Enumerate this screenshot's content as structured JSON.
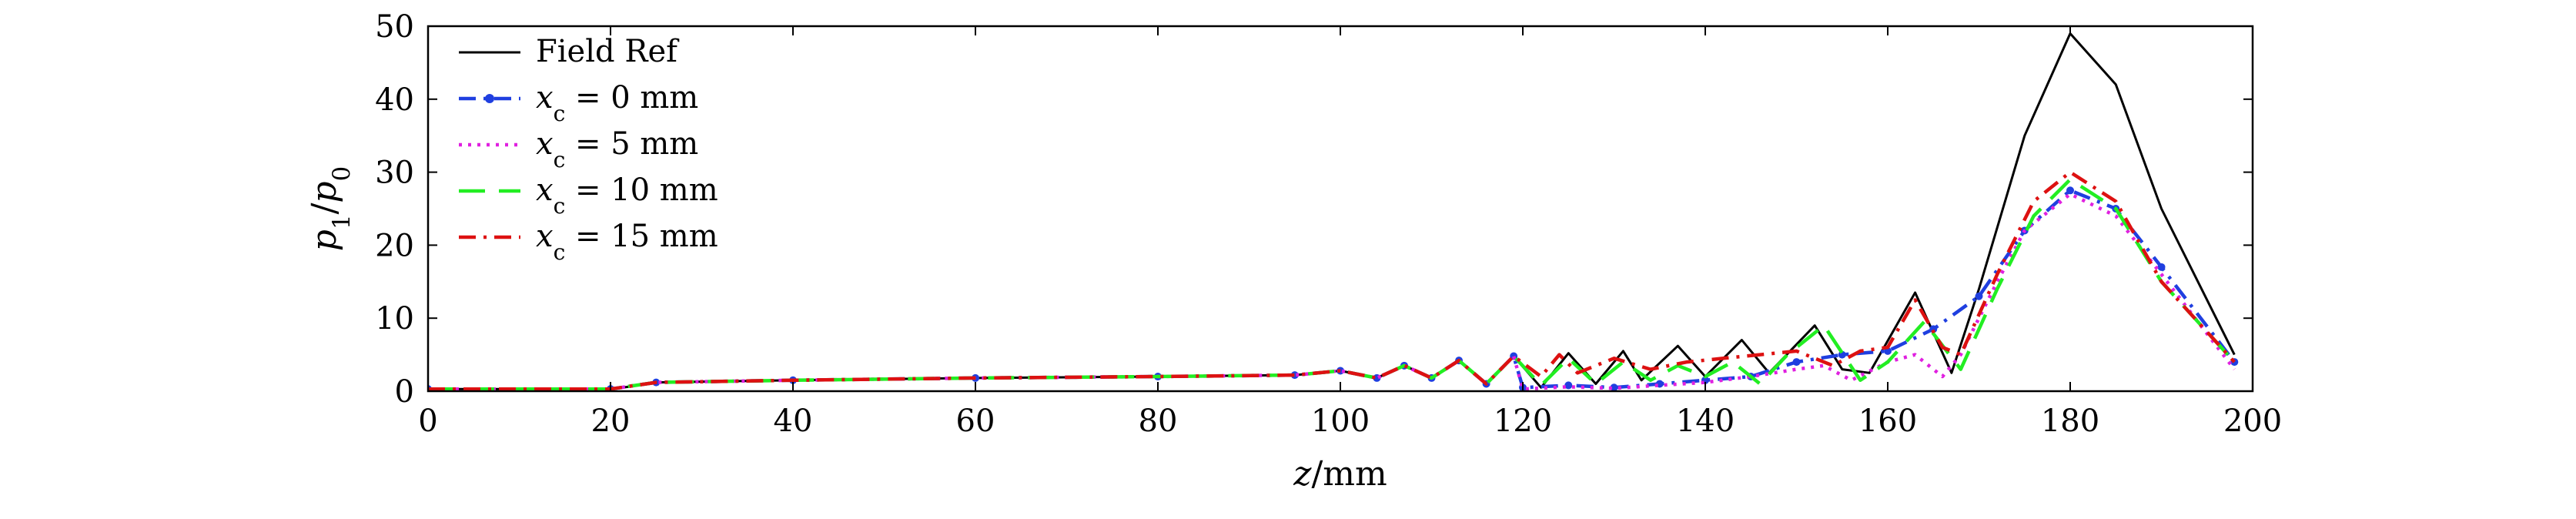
{
  "chart_data": {
    "type": "line",
    "xlabel": "z/mm",
    "ylabel": "p1/p0",
    "xlim": [
      0,
      200
    ],
    "ylim": [
      0,
      50
    ],
    "xticks": [
      0,
      20,
      40,
      60,
      80,
      100,
      120,
      140,
      160,
      180,
      200
    ],
    "yticks": [
      0,
      10,
      20,
      30,
      40,
      50
    ],
    "grid": false,
    "legend_position": "top-left",
    "series": [
      {
        "name": "Field Ref",
        "color": "#000000",
        "dash": "solid",
        "marker": "none",
        "x": [
          0,
          20,
          22,
          25,
          40,
          60,
          80,
          95,
          100,
          104,
          107,
          110,
          113,
          116,
          119,
          122,
          125,
          128,
          131,
          133,
          137,
          140,
          144,
          147,
          152,
          155,
          158,
          163,
          167,
          170,
          175,
          180,
          185,
          190,
          198
        ],
        "y": [
          0.3,
          0.3,
          0.6,
          1.2,
          1.5,
          1.8,
          2.0,
          2.2,
          2.8,
          1.8,
          3.5,
          1.8,
          4.2,
          1.0,
          4.8,
          0.5,
          5.2,
          1.0,
          5.5,
          1.5,
          6.2,
          2.0,
          7.0,
          2.5,
          9.0,
          3.0,
          2.5,
          13.5,
          2.5,
          14.0,
          35.0,
          49.0,
          42.0,
          25.0,
          5.0
        ]
      },
      {
        "name": "x_c = 0 mm",
        "color": "#1f3fe0",
        "dash": "dashdot",
        "marker": "dot",
        "x": [
          0,
          20,
          25,
          40,
          60,
          80,
          95,
          100,
          104,
          107,
          110,
          113,
          116,
          119,
          120,
          125,
          130,
          135,
          140,
          145,
          150,
          155,
          160,
          165,
          170,
          175,
          180,
          185,
          190,
          198
        ],
        "y": [
          0.3,
          0.3,
          1.2,
          1.5,
          1.8,
          2.0,
          2.2,
          2.8,
          1.8,
          3.5,
          1.8,
          4.2,
          1.0,
          4.8,
          0.5,
          0.8,
          0.5,
          1.0,
          1.5,
          2.0,
          4.0,
          5.0,
          5.5,
          8.5,
          13.0,
          22.0,
          27.5,
          25.0,
          17.0,
          4.0
        ]
      },
      {
        "name": "x_c = 5 mm",
        "color": "#e020e0",
        "dash": "dotted",
        "marker": "none",
        "x": [
          0,
          20,
          25,
          40,
          60,
          80,
          95,
          100,
          104,
          107,
          110,
          113,
          116,
          119,
          120,
          125,
          130,
          135,
          140,
          145,
          150,
          153,
          156,
          160,
          163,
          166,
          168,
          172,
          175,
          180,
          185,
          190,
          198
        ],
        "y": [
          0.3,
          0.3,
          1.2,
          1.5,
          1.8,
          2.0,
          2.2,
          2.8,
          1.8,
          3.5,
          1.8,
          4.2,
          1.0,
          4.8,
          0.3,
          0.6,
          0.4,
          0.8,
          1.2,
          2.0,
          3.0,
          3.5,
          1.5,
          4.0,
          5.0,
          2.0,
          5.0,
          15.0,
          22.0,
          27.0,
          24.0,
          16.0,
          3.0
        ]
      },
      {
        "name": "x_c = 10 mm",
        "color": "#22ee22",
        "dash": "longdash",
        "marker": "none",
        "x": [
          0,
          20,
          25,
          40,
          60,
          80,
          95,
          100,
          104,
          107,
          110,
          113,
          116,
          119,
          122,
          125,
          128,
          131,
          134,
          137,
          140,
          143,
          146,
          149,
          153,
          157,
          160,
          164,
          168,
          172,
          176,
          180,
          185,
          190,
          198
        ],
        "y": [
          0.3,
          0.3,
          1.2,
          1.5,
          1.8,
          2.0,
          2.2,
          2.8,
          1.8,
          3.5,
          1.8,
          4.2,
          1.0,
          4.8,
          0.8,
          4.5,
          1.0,
          4.0,
          1.5,
          3.5,
          2.0,
          4.0,
          1.0,
          5.0,
          9.0,
          1.5,
          4.0,
          9.5,
          3.0,
          14.0,
          24.0,
          29.0,
          25.0,
          15.0,
          4.0
        ]
      },
      {
        "name": "x_c = 15 mm",
        "color": "#dd1111",
        "dash": "dashdot",
        "marker": "none",
        "x": [
          0,
          20,
          25,
          40,
          60,
          80,
          95,
          100,
          104,
          107,
          110,
          113,
          116,
          119,
          122,
          124,
          126,
          130,
          134,
          138,
          142,
          146,
          150,
          154,
          157,
          160,
          163,
          166,
          168,
          172,
          176,
          180,
          185,
          190,
          198
        ],
        "y": [
          0.3,
          0.3,
          1.2,
          1.5,
          1.8,
          2.0,
          2.2,
          2.8,
          1.8,
          3.5,
          1.8,
          4.2,
          1.0,
          4.8,
          2.0,
          5.0,
          2.5,
          4.5,
          3.0,
          4.0,
          4.5,
          5.0,
          5.5,
          3.5,
          5.5,
          6.0,
          12.5,
          6.0,
          5.0,
          16.0,
          26.0,
          30.0,
          26.0,
          15.0,
          4.0
        ]
      }
    ]
  }
}
